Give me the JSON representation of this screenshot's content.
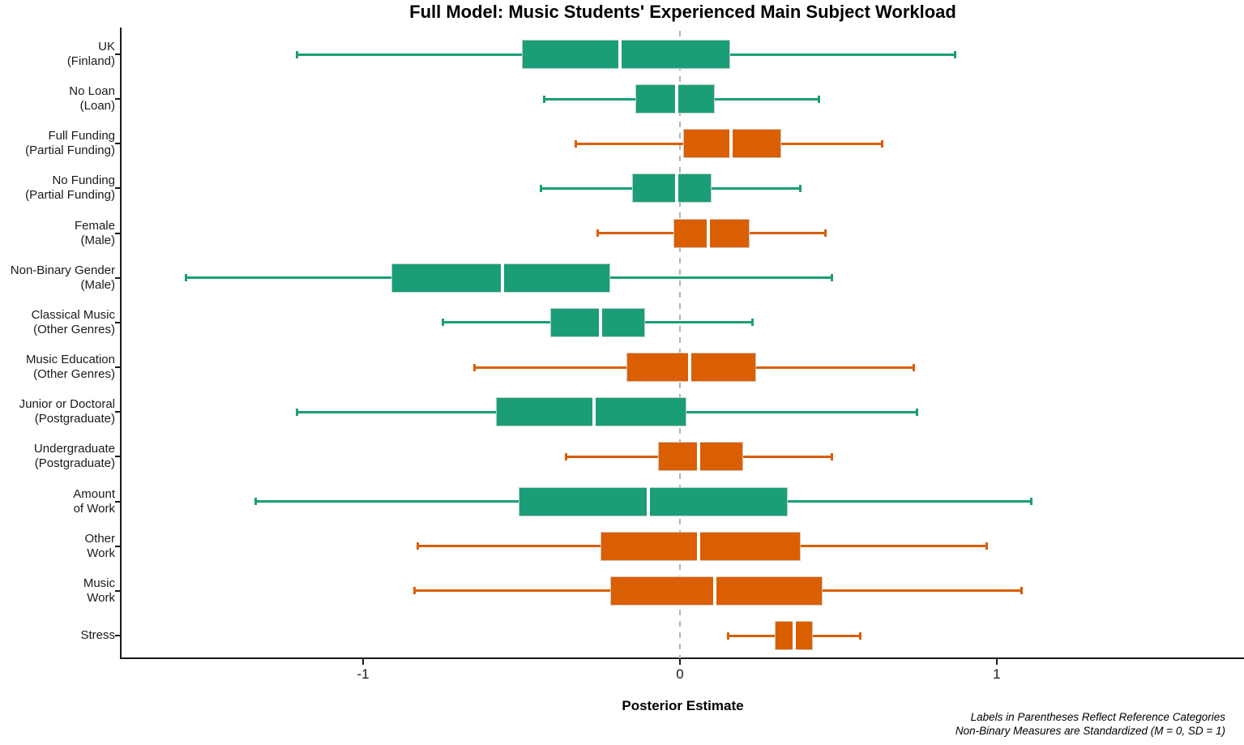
{
  "title": "Full Model: Music Students' Experienced Main Subject Workload",
  "x_axis": {
    "label": "Posterior Estimate",
    "tick_labels": [
      "-1",
      "0",
      "1"
    ]
  },
  "caption": {
    "line1": "Labels in Parentheses Reflect Reference Categories",
    "line2": "Non-Binary Measures are Standardized (M = 0, SD = 1)"
  },
  "colors": {
    "teal": "#1b9e77",
    "orange": "#d95f02",
    "zero_line": "#b3b3b3",
    "median": "#ffffff",
    "axis": "#1a1a1a"
  },
  "chart_data": {
    "type": "boxplot",
    "orientation": "horizontal",
    "title": "Full Model: Music Students' Experienced Main Subject Workload",
    "xlabel": "Posterior Estimate",
    "xlim": [
      -1.7625,
      1.7806
    ],
    "x_ticks": [
      -1,
      0,
      1
    ],
    "zero_reference_line": 0,
    "grid": false,
    "legend": "none",
    "rows": [
      {
        "label": [
          "UK",
          "(Finland)"
        ],
        "color": "teal",
        "whisker_low": -1.21,
        "q1": -0.5,
        "median": -0.19,
        "q3": 0.16,
        "whisker_high": 0.87
      },
      {
        "label": [
          "No Loan",
          "(Loan)"
        ],
        "color": "teal",
        "whisker_low": -0.43,
        "q1": -0.14,
        "median": -0.01,
        "q3": 0.11,
        "whisker_high": 0.44
      },
      {
        "label": [
          "Full Funding",
          "(Partial Funding)"
        ],
        "color": "orange",
        "whisker_low": -0.33,
        "q1": 0.01,
        "median": 0.16,
        "q3": 0.32,
        "whisker_high": 0.64
      },
      {
        "label": [
          "No Funding",
          "(Partial Funding)"
        ],
        "color": "teal",
        "whisker_low": -0.44,
        "q1": -0.15,
        "median": -0.01,
        "q3": 0.1,
        "whisker_high": 0.38
      },
      {
        "label": [
          "Female",
          "(Male)"
        ],
        "color": "orange",
        "whisker_low": -0.26,
        "q1": -0.02,
        "median": 0.09,
        "q3": 0.22,
        "whisker_high": 0.46
      },
      {
        "label": [
          "Non-Binary Gender",
          "(Male)"
        ],
        "color": "teal",
        "whisker_low": -1.56,
        "q1": -0.91,
        "median": -0.56,
        "q3": -0.22,
        "whisker_high": 0.48
      },
      {
        "label": [
          "Classical Music",
          "(Other Genres)"
        ],
        "color": "teal",
        "whisker_low": -0.75,
        "q1": -0.41,
        "median": -0.25,
        "q3": -0.11,
        "whisker_high": 0.23
      },
      {
        "label": [
          "Music Education",
          "(Other Genres)"
        ],
        "color": "orange",
        "whisker_low": -0.65,
        "q1": -0.17,
        "median": 0.03,
        "q3": 0.24,
        "whisker_high": 0.74
      },
      {
        "label": [
          "Junior or Doctoral",
          "(Postgraduate)"
        ],
        "color": "teal",
        "whisker_low": -1.21,
        "q1": -0.58,
        "median": -0.27,
        "q3": 0.02,
        "whisker_high": 0.75
      },
      {
        "label": [
          "Undergraduate",
          "(Postgraduate)"
        ],
        "color": "orange",
        "whisker_low": -0.36,
        "q1": -0.07,
        "median": 0.06,
        "q3": 0.2,
        "whisker_high": 0.48
      },
      {
        "label": [
          "Amount",
          "of Work"
        ],
        "color": "teal",
        "whisker_low": -1.34,
        "q1": -0.51,
        "median": -0.1,
        "q3": 0.34,
        "whisker_high": 1.11
      },
      {
        "label": [
          "Other",
          "Work"
        ],
        "color": "orange",
        "whisker_low": -0.83,
        "q1": -0.25,
        "median": 0.06,
        "q3": 0.38,
        "whisker_high": 0.97
      },
      {
        "label": [
          "Music",
          "Work"
        ],
        "color": "orange",
        "whisker_low": -0.84,
        "q1": -0.22,
        "median": 0.11,
        "q3": 0.45,
        "whisker_high": 1.08
      },
      {
        "label": [
          "Stress"
        ],
        "color": "orange",
        "whisker_low": 0.15,
        "q1": 0.3,
        "median": 0.36,
        "q3": 0.42,
        "whisker_high": 0.57
      }
    ]
  }
}
